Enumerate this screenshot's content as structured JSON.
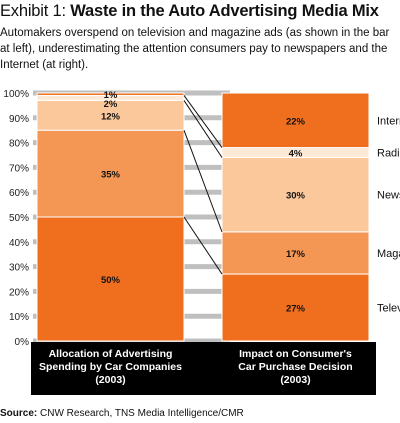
{
  "title": {
    "prefix": "Exhibit 1: ",
    "text": "Waste in the Auto Advertising Media Mix"
  },
  "subtitle": "Automakers overspend on television and magazine ads (as shown in the bar at left), underestimating the attention consumers pay to newspapers and the Internet  (at right).",
  "source": {
    "label": "Source:",
    "text": " CNW Research, TNS Media Intelligence/CMR"
  },
  "colors": {
    "dark_orange": "#ef6f1f",
    "mid_orange": "#f59754",
    "light_orange": "#fbc89b",
    "pale": "#fde9d6",
    "gridline": "#bfbfbf",
    "label_band": "#000000"
  },
  "chart_data": {
    "type": "bar",
    "stacked": true,
    "ylim": [
      0,
      100
    ],
    "yticks": [
      "0%",
      "10%",
      "20%",
      "30%",
      "40%",
      "50%",
      "60%",
      "70%",
      "80%",
      "90%",
      "100%"
    ],
    "categories": [
      "Allocation of Advertising Spending by Car Companies (2003)",
      "Impact on Consumer's Car Purchase Decision (2003)"
    ],
    "category_lines": [
      [
        "Allocation of Advertising",
        "Spending by Car Companies",
        "(2003)"
      ],
      [
        "Impact on Consumer's",
        "Car Purchase Decision",
        "(2003)"
      ]
    ],
    "series": [
      {
        "name": "Television",
        "values": [
          50,
          27
        ],
        "labels": [
          "50%",
          "27%"
        ],
        "color": "#ef6f1f"
      },
      {
        "name": "Magazine",
        "values": [
          35,
          17
        ],
        "labels": [
          "35%",
          "17%"
        ],
        "color": "#f59754"
      },
      {
        "name": "Newspaper",
        "values": [
          12,
          30
        ],
        "labels": [
          "12%",
          "30%"
        ],
        "color": "#fbc89b"
      },
      {
        "name": "Radio",
        "values": [
          2,
          4
        ],
        "labels": [
          "2%",
          "4%"
        ],
        "color": "#fde9d6"
      },
      {
        "name": "Internet",
        "values": [
          1,
          22
        ],
        "labels": [
          "1%",
          "22%"
        ],
        "color": "#ef6f1f"
      }
    ],
    "grid": true,
    "legend": "right"
  }
}
